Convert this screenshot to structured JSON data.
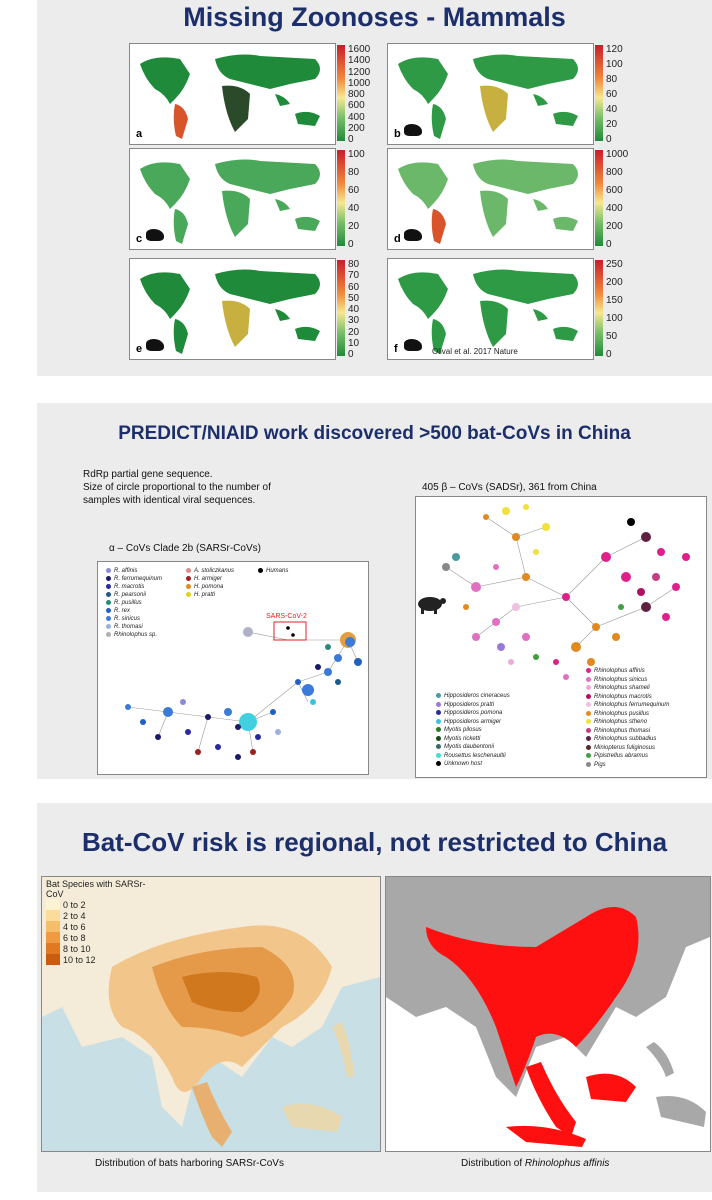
{
  "slide1": {
    "title": "Missing Zoonoses - Mammals",
    "panels": [
      {
        "label": "a",
        "animal": "none",
        "ticks": [
          "1600",
          "1400",
          "1200",
          "1000",
          "800",
          "600",
          "400",
          "200",
          "0"
        ]
      },
      {
        "label": "b",
        "animal": "fox-icon",
        "ticks": [
          "120",
          "100",
          "80",
          "60",
          "40",
          "20",
          "0"
        ]
      },
      {
        "label": "c",
        "animal": "ungulate-icon",
        "ticks": [
          "100",
          "80",
          "60",
          "40",
          "20",
          "0"
        ]
      },
      {
        "label": "d",
        "animal": "bat-icon",
        "ticks": [
          "1000",
          "800",
          "600",
          "400",
          "200",
          "0"
        ]
      },
      {
        "label": "e",
        "animal": "primate-icon",
        "ticks": [
          "80",
          "70",
          "60",
          "50",
          "40",
          "30",
          "20",
          "10",
          "0"
        ]
      },
      {
        "label": "f",
        "animal": "rodent-icon",
        "ticks": [
          "250",
          "200",
          "150",
          "100",
          "50",
          "0"
        ]
      }
    ],
    "credit": "Olival et al. 2017 Nature"
  },
  "slide2": {
    "title": "PREDICT/NIAID work discovered >500 bat-CoVs in China",
    "desc_line1": "RdRp partial gene sequence.",
    "desc_line2": "Size of circle proportional to the number of",
    "desc_line3": "samples with identical viral sequences.",
    "alpha_title": "α – CoVs Clade 2b (SARSr-CoVs)",
    "beta_title": "405 β – CoVs (SADSr), 361 from China",
    "sars_label": "SARS-CoV-2",
    "alpha_legend": [
      {
        "name": "R. affinis",
        "color": "#8a8ad8"
      },
      {
        "name": "R. ferrumequinum",
        "color": "#1a1a6a"
      },
      {
        "name": "R. macrotis",
        "color": "#2a2aa0"
      },
      {
        "name": "R. pearsonii",
        "color": "#1e5a8a"
      },
      {
        "name": "R. pusillus",
        "color": "#2a8a7a"
      },
      {
        "name": "R. rex",
        "color": "#2060c0"
      },
      {
        "name": "R. sinicus",
        "color": "#3a7ad8"
      },
      {
        "name": "R. thomasi",
        "color": "#9ab0e0"
      },
      {
        "name": "Rhinolophus sp.",
        "color": "#b0b0b0"
      },
      {
        "name": "A. stoliczkanus",
        "color": "#e08a8a"
      },
      {
        "name": "H. armiger",
        "color": "#a02020"
      },
      {
        "name": "H. pomona",
        "color": "#e08a20"
      },
      {
        "name": "H. pratti",
        "color": "#e0d020"
      },
      {
        "name": "Humans",
        "color": "#000000"
      }
    ],
    "beta_legend_left": [
      {
        "name": "Hipposideros cineraceus",
        "color": "#4a9aa0"
      },
      {
        "name": "Hipposideros pratti",
        "color": "#9a7ad8"
      },
      {
        "name": "Hipposideros pomona",
        "color": "#2a2a9a"
      },
      {
        "name": "Hipposideros armiger",
        "color": "#40c0e0"
      },
      {
        "name": "Myotis pilosus",
        "color": "#2a7a2a"
      },
      {
        "name": "Myotis ricketti",
        "color": "#1a4a1a"
      },
      {
        "name": "Myotis daubentonii",
        "color": "#3a6a6a"
      },
      {
        "name": "Rousettus leschenaultii",
        "color": "#40e0d0"
      },
      {
        "name": "Unknown host",
        "color": "#000000"
      }
    ],
    "beta_legend_right": [
      {
        "name": "Rhinolophus affinis",
        "color": "#e0208a"
      },
      {
        "name": "Rhinolophus sinicus",
        "color": "#e070c0"
      },
      {
        "name": "Rhinolophus shameli",
        "color": "#f0a8d8"
      },
      {
        "name": "Rhinolophus macrotis",
        "color": "#b01060"
      },
      {
        "name": "Rhinolophus ferrumequinum",
        "color": "#f0c0e0"
      },
      {
        "name": "Rhinolophus pusillus",
        "color": "#e08a20"
      },
      {
        "name": "Rhinolophus stheno",
        "color": "#f0e040"
      },
      {
        "name": "Rhinolophus thomasi",
        "color": "#c04080"
      },
      {
        "name": "Rhinolophus subbadius",
        "color": "#602040"
      },
      {
        "name": "Miniopterus fuliginosus",
        "color": "#5a2a2a"
      },
      {
        "name": "Pipistrellus abramus",
        "color": "#40a040"
      },
      {
        "name": "Pigs",
        "color": "#888888"
      }
    ]
  },
  "slide3": {
    "title": "Bat-CoV risk is regional, not restricted to China",
    "legend_title": "Bat Species with SARSr-CoV",
    "legend": [
      {
        "label": "0 to 2",
        "color": "#fdf3d0"
      },
      {
        "label": "2 to 4",
        "color": "#fbdc9a"
      },
      {
        "label": "4 to 6",
        "color": "#f6bd6a"
      },
      {
        "label": "6 to 8",
        "color": "#ee9b42"
      },
      {
        "label": "8 to 10",
        "color": "#e07a22"
      },
      {
        "label": "10 to 12",
        "color": "#c85c10"
      }
    ],
    "caption_left": "Distribution of bats harboring SARSr-CoVs",
    "caption_right_prefix": "Distribution of ",
    "caption_right_species": "Rhinolophus affinis",
    "colors": {
      "range_red": "#ff1010",
      "land_grey": "#a8a8a8",
      "sea": "#c9dfe6"
    }
  }
}
